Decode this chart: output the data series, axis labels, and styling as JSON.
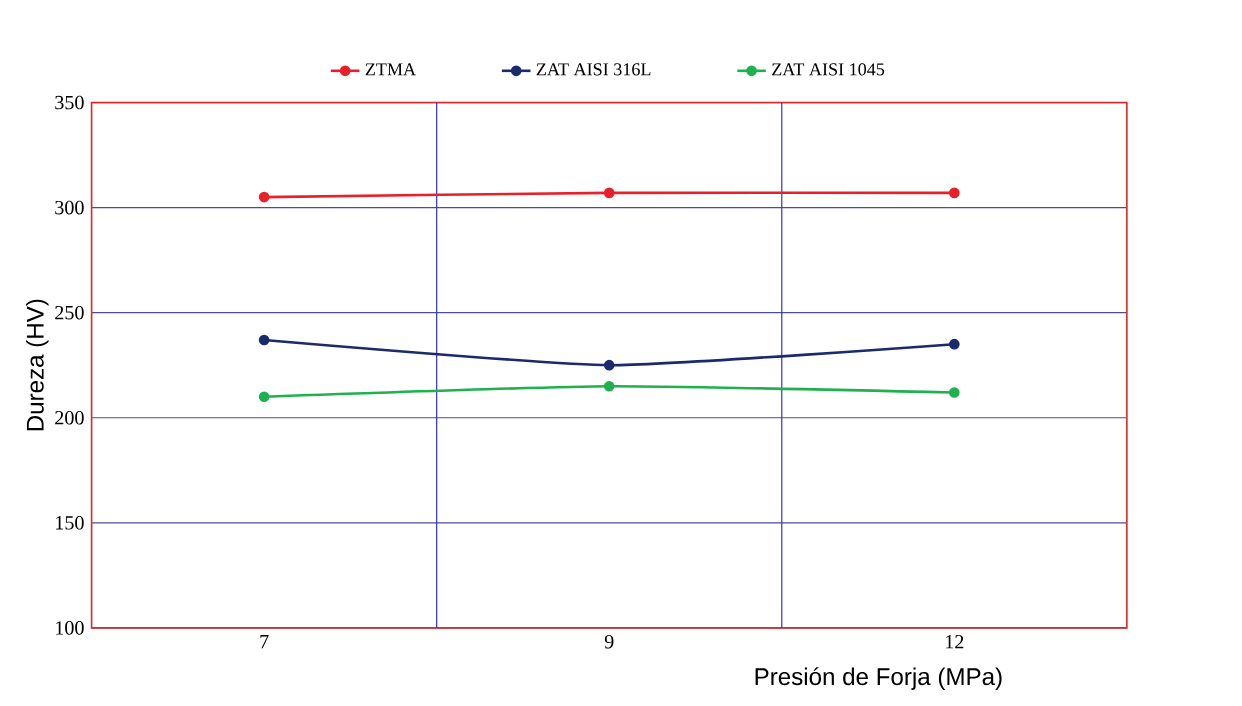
{
  "chart_data": {
    "type": "line",
    "xlabel": "Presión de Forja (MPa)",
    "ylabel": "Dureza (HV)",
    "categories": [
      "7",
      "9",
      "12"
    ],
    "series": [
      {
        "name": "ZTMA",
        "color": "#e8202a",
        "values": [
          305,
          307,
          307
        ]
      },
      {
        "name": "ZAT AISI 316L",
        "color": "#1a2a6c",
        "values": [
          237,
          225,
          235
        ]
      },
      {
        "name": "ZAT AISI 1045",
        "color": "#1fb050",
        "values": [
          210,
          215,
          212
        ]
      }
    ],
    "ylim": [
      100,
      350
    ],
    "yticks": [
      100,
      150,
      200,
      250,
      300,
      350
    ],
    "grid": true,
    "legend": "top",
    "marker": "circle",
    "line_style": "solid"
  }
}
